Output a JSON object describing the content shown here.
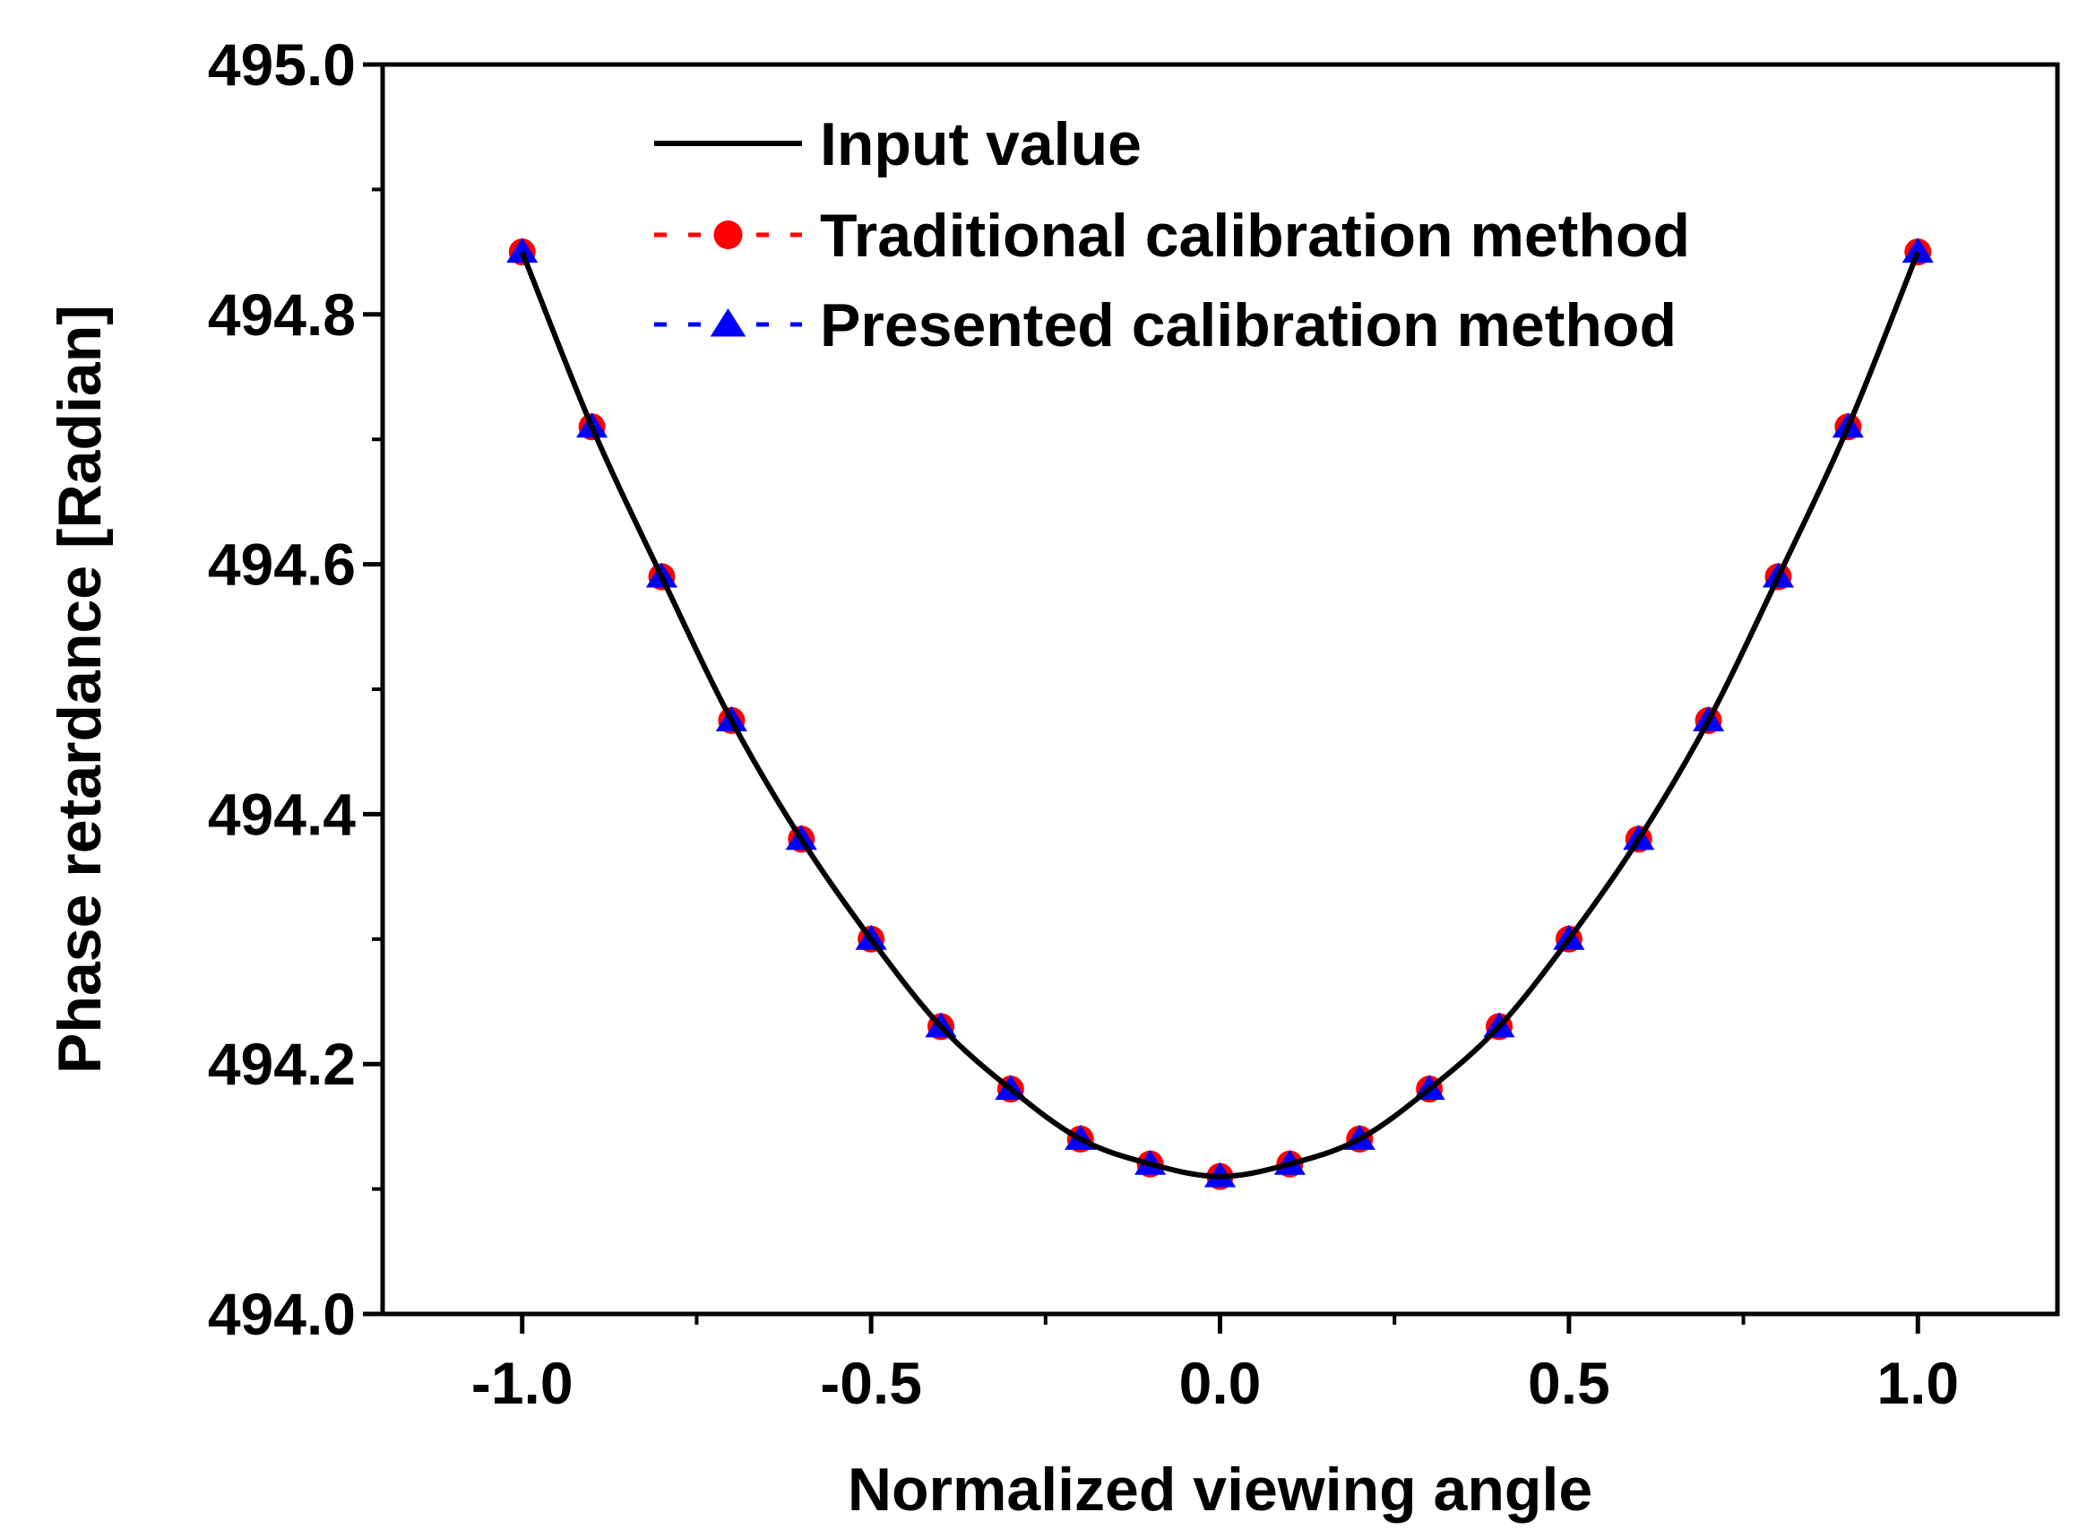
{
  "chart_data": {
    "type": "line",
    "title": "",
    "xlabel": "Normalized viewing angle",
    "ylabel": "Phase retardance [Radian]",
    "xlim": [
      -1.2,
      1.2
    ],
    "ylim": [
      494.0,
      495.0
    ],
    "x_ticks": [
      -1.0,
      -0.5,
      0.0,
      0.5,
      1.0
    ],
    "x_tick_labels": [
      "-1.0",
      "-0.5",
      "0.0",
      "0.5",
      "1.0"
    ],
    "y_ticks": [
      494.0,
      494.2,
      494.4,
      494.6,
      494.8,
      495.0
    ],
    "y_tick_labels": [
      "494.0",
      "494.2",
      "494.4",
      "494.6",
      "494.8",
      "495.0"
    ],
    "grid": false,
    "legend_position": "top-center",
    "x": [
      -1.0,
      -0.9,
      -0.8,
      -0.7,
      -0.6,
      -0.5,
      -0.4,
      -0.3,
      -0.2,
      -0.1,
      0.0,
      0.1,
      0.2,
      0.3,
      0.4,
      0.5,
      0.6,
      0.7,
      0.8,
      0.9,
      1.0
    ],
    "series": [
      {
        "name": "Input value",
        "style": "solid-line",
        "color": "#000000",
        "values": [
          494.85,
          494.71,
          494.59,
          494.475,
          494.38,
          494.3,
          494.23,
          494.18,
          494.14,
          494.12,
          494.11,
          494.12,
          494.14,
          494.18,
          494.23,
          494.3,
          494.38,
          494.475,
          494.59,
          494.71,
          494.85
        ]
      },
      {
        "name": "Traditional calibration method",
        "style": "dash-circle",
        "color": "#ff0000",
        "values": [
          494.85,
          494.71,
          494.59,
          494.475,
          494.38,
          494.3,
          494.23,
          494.18,
          494.14,
          494.12,
          494.11,
          494.12,
          494.14,
          494.18,
          494.23,
          494.3,
          494.38,
          494.475,
          494.59,
          494.71,
          494.85
        ]
      },
      {
        "name": "Presented calibration method",
        "style": "dash-triangle",
        "color": "#0000ff",
        "values": [
          494.85,
          494.71,
          494.59,
          494.475,
          494.38,
          494.3,
          494.23,
          494.18,
          494.14,
          494.12,
          494.11,
          494.12,
          494.14,
          494.18,
          494.23,
          494.3,
          494.38,
          494.475,
          494.59,
          494.71,
          494.85
        ]
      }
    ]
  }
}
